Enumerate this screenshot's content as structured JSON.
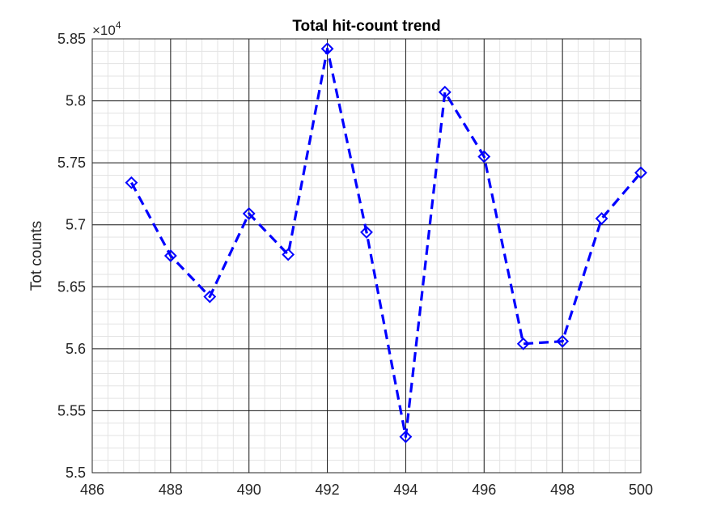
{
  "chart_data": {
    "type": "line",
    "title": "Total hit-count trend",
    "xlabel": "",
    "ylabel": "Tot counts",
    "y_multiplier": "×10",
    "y_multiplier_exponent": "4",
    "xlim": [
      486,
      500
    ],
    "ylim": [
      5.5,
      5.85
    ],
    "x_ticks": [
      486,
      488,
      490,
      492,
      494,
      496,
      498,
      500
    ],
    "x_tick_labels": [
      "486",
      "488",
      "490",
      "492",
      "494",
      "496",
      "498",
      "500"
    ],
    "y_ticks": [
      5.5,
      5.55,
      5.6,
      5.65,
      5.7,
      5.75,
      5.8,
      5.85
    ],
    "y_tick_labels": [
      "5.5",
      "5.55",
      "5.6",
      "5.65",
      "5.7",
      "5.75",
      "5.8",
      "5.85"
    ],
    "grid": true,
    "minor_grid": true,
    "series": [
      {
        "color": "#0000ff",
        "line_style": "dashed",
        "marker": "diamond",
        "x": [
          487,
          488,
          489,
          490,
          491,
          492,
          493,
          494,
          495,
          496,
          497,
          498,
          499,
          500
        ],
        "y": [
          5.734,
          5.675,
          5.642,
          5.709,
          5.676,
          5.842,
          5.694,
          5.529,
          5.807,
          5.755,
          5.604,
          5.606,
          5.705,
          5.742
        ]
      }
    ]
  }
}
